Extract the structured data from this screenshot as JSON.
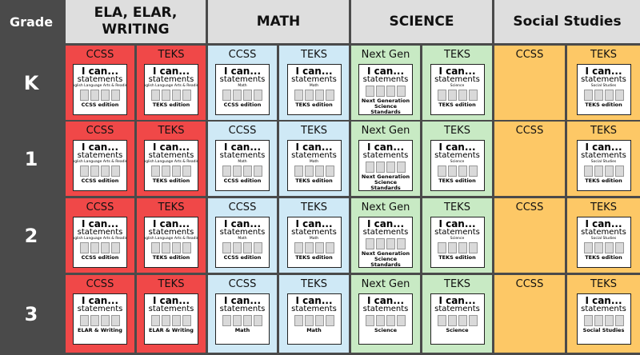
{
  "header": {
    "grade": "Grade",
    "subjects": [
      "ELA, ELAR, WRITING",
      "MATH",
      "SCIENCE",
      "Social Studies"
    ]
  },
  "rows": [
    {
      "grade": "K",
      "cells": [
        {
          "label": "CCSS",
          "cover": {
            "title": "I can...",
            "subtitle": "statements",
            "topic": "English Language Arts & Reading",
            "edition": "CCSS edition"
          }
        },
        {
          "label": "TEKS",
          "cover": {
            "title": "I can...",
            "subtitle": "statements",
            "topic": "English Language Arts & Reading",
            "edition": "TEKS edition"
          }
        },
        {
          "label": "CCSS",
          "cover": {
            "title": "I can...",
            "subtitle": "statements",
            "topic": "Math",
            "edition": "CCSS edition"
          }
        },
        {
          "label": "TEKS",
          "cover": {
            "title": "I can...",
            "subtitle": "statements",
            "topic": "Math",
            "edition": "TEKS edition"
          }
        },
        {
          "label": "Next Gen",
          "cover": {
            "title": "I can...",
            "subtitle": "statements",
            "edition": "Next Generation Science Standards"
          }
        },
        {
          "label": "TEKS",
          "cover": {
            "title": "I can...",
            "subtitle": "statements",
            "topic": "Science",
            "edition": "TEKS edition"
          }
        },
        {
          "label": "CCSS"
        },
        {
          "label": "TEKS",
          "cover": {
            "title": "I can...",
            "subtitle": "statements",
            "topic": "Social Studies",
            "edition": "TEKS edition"
          }
        }
      ]
    },
    {
      "grade": "1",
      "cells": [
        {
          "label": "CCSS",
          "cover": {
            "title": "I can...",
            "subtitle": "statements",
            "topic": "English Language Arts & Reading",
            "edition": "CCSS edition"
          }
        },
        {
          "label": "TEKS",
          "cover": {
            "title": "I can...",
            "subtitle": "statements",
            "topic": "English Language Arts & Reading",
            "edition": "TEKS edition"
          }
        },
        {
          "label": "CCSS",
          "cover": {
            "title": "I can...",
            "subtitle": "statements",
            "topic": "Math",
            "edition": "CCSS edition"
          }
        },
        {
          "label": "TEKS",
          "cover": {
            "title": "I can...",
            "subtitle": "statements",
            "topic": "Math",
            "edition": "TEKS edition"
          }
        },
        {
          "label": "Next Gen",
          "cover": {
            "title": "I can...",
            "subtitle": "statements",
            "edition": "Next Generation Science Standards"
          }
        },
        {
          "label": "TEKS",
          "cover": {
            "title": "I can...",
            "subtitle": "statements",
            "topic": "Science",
            "edition": "TEKS edition"
          }
        },
        {
          "label": "CCSS"
        },
        {
          "label": "TEKS",
          "cover": {
            "title": "I can...",
            "subtitle": "statements",
            "topic": "Social Studies",
            "edition": "TEKS edition"
          }
        }
      ]
    },
    {
      "grade": "2",
      "cells": [
        {
          "label": "CCSS",
          "cover": {
            "title": "I can...",
            "subtitle": "statements",
            "topic": "English Language Arts & Reading",
            "edition": "CCSS edition"
          }
        },
        {
          "label": "TEKS",
          "cover": {
            "title": "I can...",
            "subtitle": "statements",
            "topic": "English Language Arts & Reading",
            "edition": "TEKS edition"
          }
        },
        {
          "label": "CCSS",
          "cover": {
            "title": "I can...",
            "subtitle": "statements",
            "topic": "Math",
            "edition": "CCSS edition"
          }
        },
        {
          "label": "TEKS",
          "cover": {
            "title": "I can...",
            "subtitle": "statements",
            "topic": "Math",
            "edition": "TEKS edition"
          }
        },
        {
          "label": "Next Gen",
          "cover": {
            "title": "I can...",
            "subtitle": "statements",
            "edition": "Next Generation Science Standards"
          }
        },
        {
          "label": "TEKS",
          "cover": {
            "title": "I can...",
            "subtitle": "statements",
            "topic": "Science",
            "edition": "TEKS edition"
          }
        },
        {
          "label": "CCSS"
        },
        {
          "label": "TEKS",
          "cover": {
            "title": "I can...",
            "subtitle": "statements",
            "topic": "Social Studies",
            "edition": "TEKS edition"
          }
        }
      ]
    },
    {
      "grade": "3",
      "cells": [
        {
          "label": "CCSS",
          "cover": {
            "title": "I can...",
            "subtitle": "statements",
            "edition": "ELAR & Writing"
          }
        },
        {
          "label": "TEKS",
          "cover": {
            "title": "I can...",
            "subtitle": "statements",
            "edition": "ELAR & Writing"
          }
        },
        {
          "label": "CCSS",
          "cover": {
            "title": "I can...",
            "subtitle": "statements",
            "edition": "Math"
          }
        },
        {
          "label": "TEKS",
          "cover": {
            "title": "I can...",
            "subtitle": "statements",
            "edition": "Math"
          }
        },
        {
          "label": "Next Gen",
          "cover": {
            "title": "I can...",
            "subtitle": "statements",
            "edition": "Science"
          }
        },
        {
          "label": "TEKS",
          "cover": {
            "title": "I can...",
            "subtitle": "statements",
            "edition": "Science"
          }
        },
        {
          "label": "CCSS"
        },
        {
          "label": "TEKS",
          "cover": {
            "title": "I can...",
            "subtitle": "statements",
            "edition": "Social Studies"
          }
        }
      ]
    }
  ]
}
